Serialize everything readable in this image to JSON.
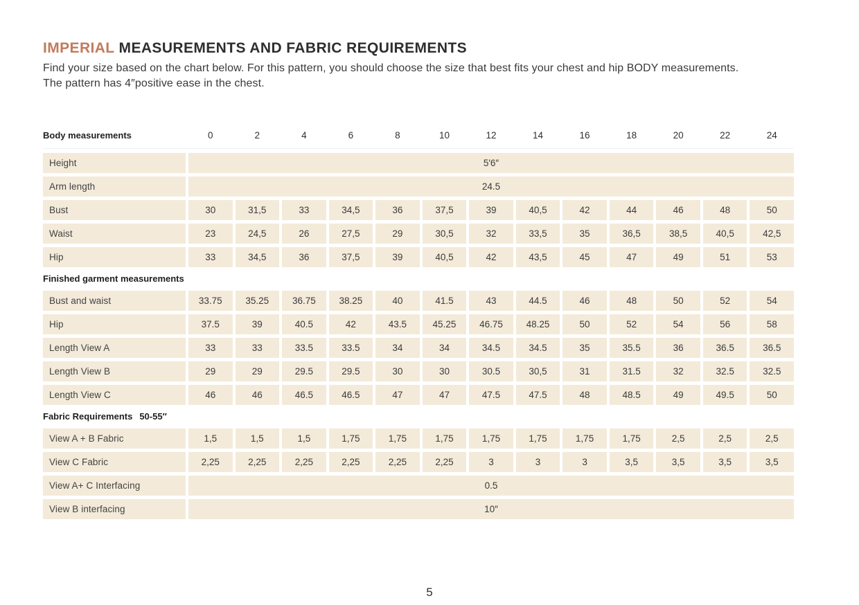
{
  "header": {
    "title_highlight": "IMPERIAL",
    "title_rest": "MEASUREMENTS AND FABRIC REQUIREMENTS",
    "intro": "Find your size based on the chart below. For this pattern, you should choose the size that best fits your chest and hip BODY measurements. The pattern has 4″positive ease in the chest."
  },
  "colors": {
    "accent": "#c27a5e",
    "cell_background": "#f3ead9",
    "text": "#2e2e2e"
  },
  "table": {
    "sections": [
      {
        "header": "Body measurements",
        "sizes": [
          "0",
          "2",
          "4",
          "6",
          "8",
          "10",
          "12",
          "14",
          "16",
          "18",
          "20",
          "22",
          "24"
        ],
        "rows": [
          {
            "label": "Height",
            "merged": "5′6″"
          },
          {
            "label": "Arm length",
            "merged": "24.5"
          },
          {
            "label": "Bust",
            "values": [
              "30",
              "31,5",
              "33",
              "34,5",
              "36",
              "37,5",
              "39",
              "40,5",
              "42",
              "44",
              "46",
              "48",
              "50"
            ]
          },
          {
            "label": "Waist",
            "values": [
              "23",
              "24,5",
              "26",
              "27,5",
              "29",
              "30,5",
              "32",
              "33,5",
              "35",
              "36,5",
              "38,5",
              "40,5",
              "42,5"
            ]
          },
          {
            "label": "Hip",
            "values": [
              "33",
              "34,5",
              "36",
              "37,5",
              "39",
              "40,5",
              "42",
              "43,5",
              "45",
              "47",
              "49",
              "51",
              "53"
            ]
          }
        ]
      },
      {
        "header": "Finished garment measurements",
        "header_extra": "",
        "rows": [
          {
            "label": "Bust and waist",
            "values": [
              "33.75",
              "35.25",
              "36.75",
              "38.25",
              "40",
              "41.5",
              "43",
              "44.5",
              "46",
              "48",
              "50",
              "52",
              "54"
            ]
          },
          {
            "label": "Hip",
            "values": [
              "37.5",
              "39",
              "40.5",
              "42",
              "43.5",
              "45.25",
              "46.75",
              "48.25",
              "50",
              "52",
              "54",
              "56",
              "58"
            ]
          },
          {
            "label": "Length View A",
            "values": [
              "33",
              "33",
              "33.5",
              "33.5",
              "34",
              "34",
              "34.5",
              "34.5",
              "35",
              "35.5",
              "36",
              "36.5",
              "36.5"
            ]
          },
          {
            "label": "Length View B",
            "values": [
              "29",
              "29",
              "29.5",
              "29.5",
              "30",
              "30",
              "30.5",
              "30,5",
              "31",
              "31.5",
              "32",
              "32.5",
              "32.5"
            ]
          },
          {
            "label": "Length View C",
            "values": [
              "46",
              "46",
              "46.5",
              "46.5",
              "47",
              "47",
              "47.5",
              "47.5",
              "48",
              "48.5",
              "49",
              "49.5",
              "50"
            ]
          }
        ]
      },
      {
        "header": "Fabric Requirements",
        "header_extra": "50-55″",
        "rows": [
          {
            "label": "View A + B Fabric",
            "values": [
              "1,5",
              "1,5",
              "1,5",
              "1,75",
              "1,75",
              "1,75",
              "1,75",
              "1,75",
              "1,75",
              "1,75",
              "2,5",
              "2,5",
              "2,5"
            ]
          },
          {
            "label": "View C Fabric",
            "values": [
              "2,25",
              "2,25",
              "2,25",
              "2,25",
              "2,25",
              "2,25",
              "3",
              "3",
              "3",
              "3,5",
              "3,5",
              "3,5",
              "3,5"
            ]
          },
          {
            "label": "View A+ C Interfacing",
            "merged": "0.5"
          },
          {
            "label": "View B interfacing",
            "merged": "10″"
          }
        ]
      }
    ]
  },
  "footer": {
    "page_number": "5"
  }
}
